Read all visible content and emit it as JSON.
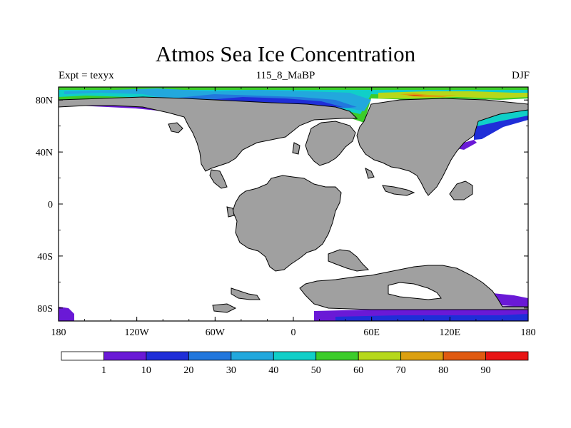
{
  "title": "Atmos Sea Ice Concentration",
  "subtitle_left": "Expt = texyx",
  "subtitle_center": "115_8_MaBP",
  "subtitle_right": "DJF",
  "colors": {
    "land": "#a0a0a0",
    "ocean": "#ffffff",
    "border": "#000000"
  },
  "map": {
    "x_ticks": [
      "180",
      "120W",
      "60W",
      "0",
      "60E",
      "120E",
      "180"
    ],
    "y_ticks": [
      "80N",
      "40N",
      "0",
      "40S",
      "80S"
    ]
  },
  "colorbar": {
    "levels": [
      "1",
      "10",
      "20",
      "30",
      "40",
      "50",
      "60",
      "70",
      "80",
      "90"
    ],
    "colors": [
      "#ffffff",
      "#6a19d6",
      "#1f2ed8",
      "#2277dd",
      "#22a8dd",
      "#10cfc8",
      "#3ccc2a",
      "#b6d81a",
      "#dca010",
      "#e05a10",
      "#e81414"
    ]
  }
}
